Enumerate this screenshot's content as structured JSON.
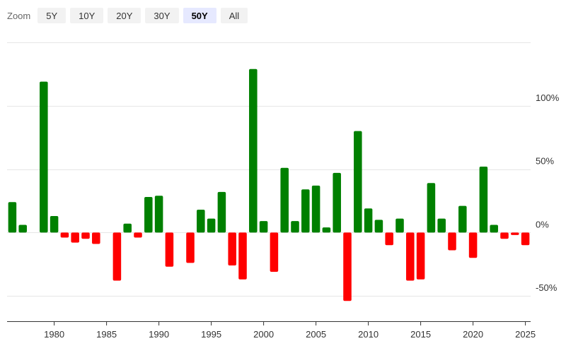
{
  "zoom": {
    "label": "Zoom",
    "buttons": [
      {
        "label": "5Y",
        "active": false
      },
      {
        "label": "10Y",
        "active": false
      },
      {
        "label": "20Y",
        "active": false
      },
      {
        "label": "30Y",
        "active": false
      },
      {
        "label": "50Y",
        "active": true
      },
      {
        "label": "All",
        "active": false
      }
    ]
  },
  "colors": {
    "positive": "#008000",
    "negative": "#ff0000",
    "grid": "#e6e6e6",
    "axis": "#333333"
  },
  "chart_data": {
    "type": "bar",
    "title": "",
    "xlabel": "",
    "ylabel": "",
    "x": [
      1976,
      1977,
      1978,
      1979,
      1980,
      1981,
      1982,
      1983,
      1984,
      1985,
      1986,
      1987,
      1988,
      1989,
      1990,
      1991,
      1992,
      1993,
      1994,
      1995,
      1996,
      1997,
      1998,
      1999,
      2000,
      2001,
      2002,
      2003,
      2004,
      2005,
      2006,
      2007,
      2008,
      2009,
      2010,
      2011,
      2012,
      2013,
      2014,
      2015,
      2016,
      2017,
      2018,
      2019,
      2020,
      2021,
      2022,
      2023,
      2024,
      2025
    ],
    "values": [
      24,
      6,
      0,
      119,
      13,
      -4,
      -8,
      -5,
      -9,
      0,
      -38,
      7,
      -4,
      28,
      29,
      -27,
      0,
      -24,
      18,
      11,
      32,
      -26,
      -37,
      129,
      9,
      -31,
      51,
      9,
      34,
      37,
      4,
      47,
      -54,
      80,
      19,
      10,
      -10,
      11,
      -38,
      -37,
      39,
      11,
      -14,
      21,
      -20,
      52,
      6,
      -5,
      -2,
      -10
    ],
    "ylim": [
      -70,
      150
    ],
    "yticks": [
      -50,
      0,
      50,
      100
    ],
    "ytick_labels": [
      "-50%",
      "0%",
      "50%",
      "100%"
    ],
    "xticks": [
      1980,
      1985,
      1990,
      1995,
      2000,
      2005,
      2010,
      2015,
      2020,
      2025
    ],
    "grid": true,
    "y_axis_position": "right"
  }
}
